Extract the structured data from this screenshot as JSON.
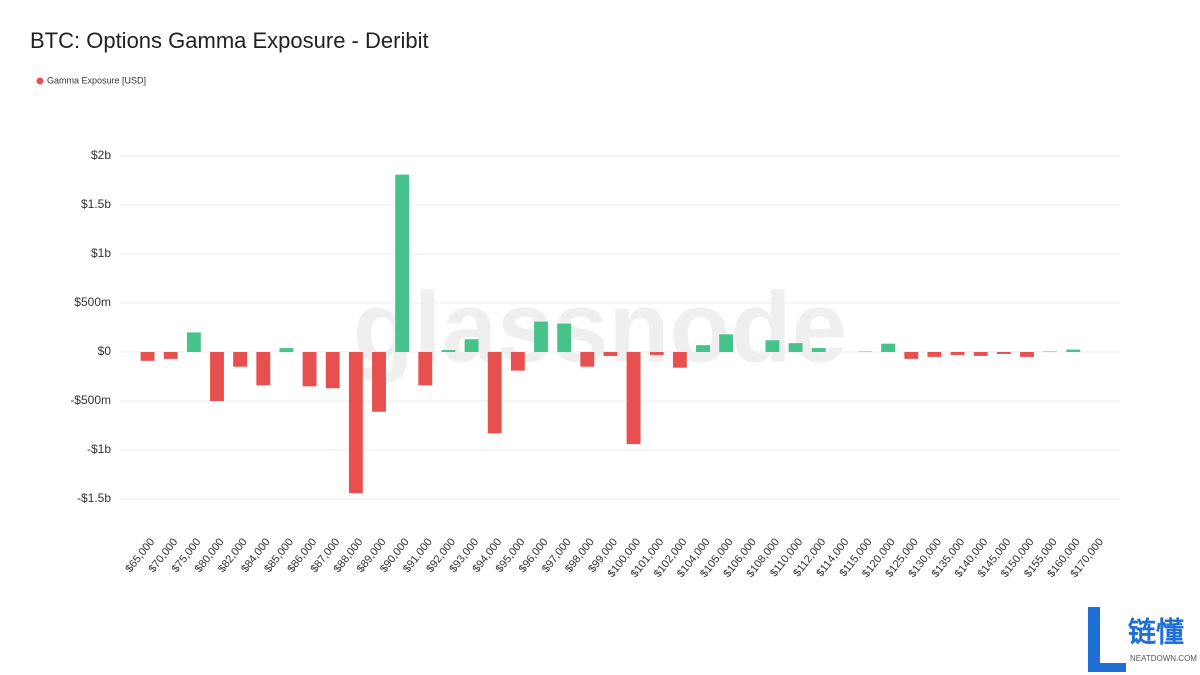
{
  "chart_data": {
    "type": "bar",
    "title": "BTC: Options Gamma Exposure - Deribit",
    "watermark": "glassnode",
    "brand": {
      "name": "链懂",
      "site": "NEATDOWN.COM"
    },
    "series": [
      {
        "name": "Gamma Exposure [USD]",
        "color": "#e8504f",
        "positive_color": "#46c38b",
        "values": [
          -90000000,
          -70000000,
          200000000,
          -500000000,
          -150000000,
          -340000000,
          40000000,
          -350000000,
          -370000000,
          -1440000000,
          -610000000,
          1810000000,
          -340000000,
          20000000,
          130000000,
          -830000000,
          -190000000,
          310000000,
          290000000,
          -150000000,
          -40000000,
          -940000000,
          -30000000,
          -160000000,
          70000000,
          180000000,
          0,
          120000000,
          90000000,
          40000000,
          0,
          5000000,
          85000000,
          -70000000,
          -50000000,
          -30000000,
          -40000000,
          -20000000,
          -50000000,
          5000000,
          25000000,
          0
        ]
      }
    ],
    "categories": [
      "$65,000",
      "$70,000",
      "$75,000",
      "$80,000",
      "$82,000",
      "$84,000",
      "$85,000",
      "$86,000",
      "$87,000",
      "$88,000",
      "$89,000",
      "$90,000",
      "$91,000",
      "$92,000",
      "$93,000",
      "$94,000",
      "$95,000",
      "$96,000",
      "$97,000",
      "$98,000",
      "$99,000",
      "$100,000",
      "$101,000",
      "$102,000",
      "$104,000",
      "$105,000",
      "$106,000",
      "$108,000",
      "$110,000",
      "$112,000",
      "$114,000",
      "$115,000",
      "$120,000",
      "$125,000",
      "$130,000",
      "$135,000",
      "$140,000",
      "$145,000",
      "$150,000",
      "$155,000",
      "$160,000",
      "$170,000"
    ],
    "ylim": [
      -1750000000,
      2000000000
    ],
    "yticks": [
      {
        "value": -1500000000,
        "label": "-$1.5b"
      },
      {
        "value": -1000000000,
        "label": "-$1b"
      },
      {
        "value": -500000000,
        "label": "-$500m"
      },
      {
        "value": 0,
        "label": "$0"
      },
      {
        "value": 500000000,
        "label": "$500m"
      },
      {
        "value": 1000000000,
        "label": "$1b"
      },
      {
        "value": 1500000000,
        "label": "$1.5b"
      },
      {
        "value": 2000000000,
        "label": "$2b"
      }
    ],
    "grid": true,
    "legend": "top-left"
  }
}
